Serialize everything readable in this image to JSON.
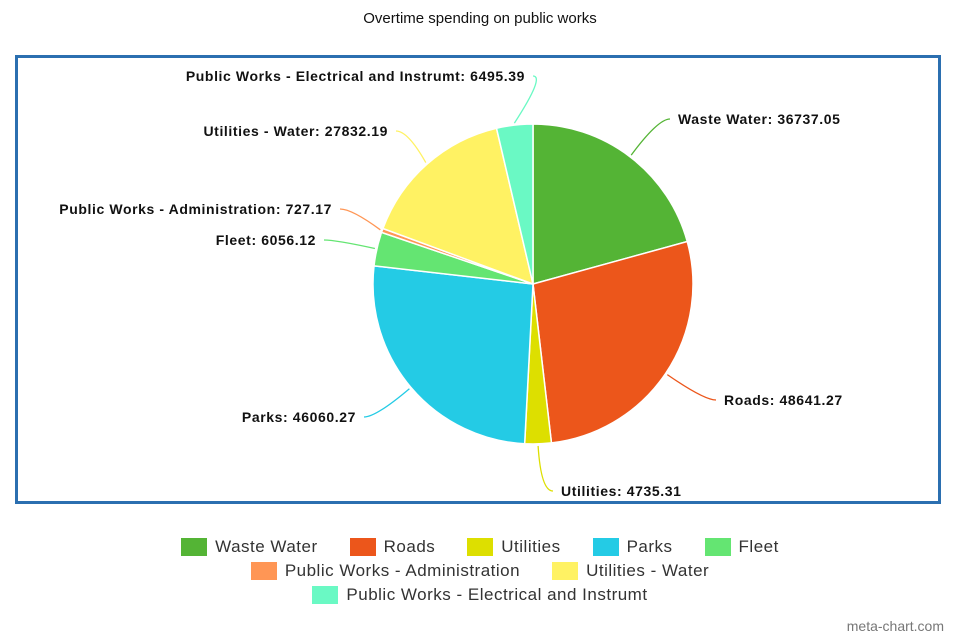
{
  "title": "Overtime spending on public works",
  "watermark": "meta-chart.com",
  "chart_data": {
    "type": "pie",
    "title": "Overtime spending on public works",
    "legend_position": "bottom",
    "slices": [
      {
        "label": "Waste Water",
        "value": 36737.05,
        "color": "#54b435",
        "display_value": "36737.05"
      },
      {
        "label": "Roads",
        "value": 48641.27,
        "color": "#ec561b",
        "display_value": "48641.27"
      },
      {
        "label": "Utilities",
        "value": 4735.31,
        "color": "#dddf00",
        "display_value": "4735.31"
      },
      {
        "label": "Parks",
        "value": 46060.27,
        "color": "#24cbe5",
        "display_value": "46060.27"
      },
      {
        "label": "Fleet",
        "value": 6056.12,
        "color": "#64e572",
        "display_value": "6056.12"
      },
      {
        "label": "Public Works - Administration",
        "value": 727.17,
        "color": "#ff9655",
        "display_value": "727.17"
      },
      {
        "label": "Utilities - Water",
        "value": 27832.19,
        "color": "#fff263",
        "display_value": "27832.19"
      },
      {
        "label": "Public Works - Electrical and Instrumt",
        "value": 6495.39,
        "color": "#6af9c4",
        "display_value": "6495.39"
      }
    ]
  }
}
